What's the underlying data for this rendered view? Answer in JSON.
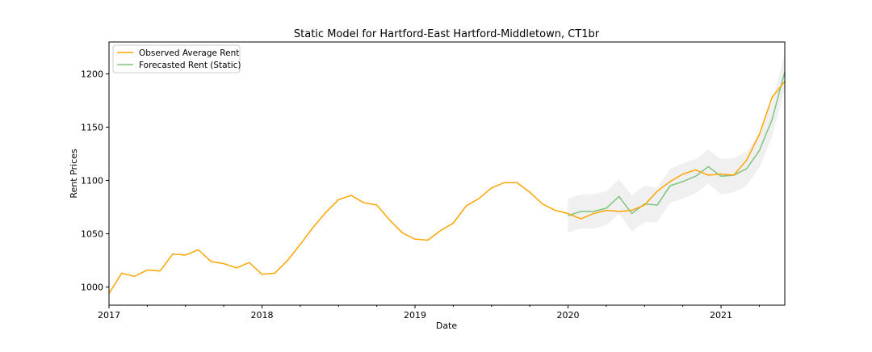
{
  "chart_data": {
    "type": "line",
    "title": "Static Model for Hartford-East Hartford-Middletown, CT1br",
    "xlabel": "Date",
    "ylabel": "Rent Prices",
    "xlim": [
      "2017-01",
      "2021-06"
    ],
    "ylim": [
      983,
      1230
    ],
    "x_tick_labels": [
      "2017",
      "2018",
      "2019",
      "2020",
      "2021"
    ],
    "y_ticks": [
      1000,
      1050,
      1100,
      1150,
      1200
    ],
    "grid": false,
    "legend_position": "upper-left",
    "colors": {
      "observed": "#FFA500",
      "forecast": "#7fc47f",
      "confidence_band": "#e6e6e6"
    },
    "series": [
      {
        "name": "Observed Average Rent",
        "x": [
          "2017-01",
          "2017-02",
          "2017-03",
          "2017-04",
          "2017-05",
          "2017-06",
          "2017-07",
          "2017-08",
          "2017-09",
          "2017-10",
          "2017-11",
          "2017-12",
          "2018-01",
          "2018-02",
          "2018-03",
          "2018-04",
          "2018-05",
          "2018-06",
          "2018-07",
          "2018-08",
          "2018-09",
          "2018-10",
          "2018-11",
          "2018-12",
          "2019-01",
          "2019-02",
          "2019-03",
          "2019-04",
          "2019-05",
          "2019-06",
          "2019-07",
          "2019-08",
          "2019-09",
          "2019-10",
          "2019-11",
          "2019-12",
          "2020-01",
          "2020-02",
          "2020-03",
          "2020-04",
          "2020-05",
          "2020-06",
          "2020-07",
          "2020-08",
          "2020-09",
          "2020-10",
          "2020-11",
          "2020-12",
          "2021-01",
          "2021-02",
          "2021-03",
          "2021-04",
          "2021-05",
          "2021-06"
        ],
        "values": [
          994,
          1013,
          1010,
          1016,
          1015,
          1031,
          1030,
          1035,
          1024,
          1022,
          1018,
          1023,
          1012,
          1013,
          1025,
          1040,
          1056,
          1070,
          1082,
          1086,
          1079,
          1077,
          1063,
          1051,
          1045,
          1044,
          1053,
          1060,
          1076,
          1083,
          1093,
          1098,
          1098,
          1089,
          1078,
          1072,
          1069,
          1064,
          1069,
          1072,
          1071,
          1072,
          1077,
          1090,
          1099,
          1106,
          1110,
          1105,
          1106,
          1105,
          1119,
          1143,
          1178,
          1193
        ]
      },
      {
        "name": "Forecasted Rent (Static)",
        "x": [
          "2020-01",
          "2020-02",
          "2020-03",
          "2020-04",
          "2020-05",
          "2020-06",
          "2020-07",
          "2020-08",
          "2020-09",
          "2020-10",
          "2020-11",
          "2020-12",
          "2021-01",
          "2021-02",
          "2021-03",
          "2021-04",
          "2021-05",
          "2021-06"
        ],
        "values": [
          1067,
          1071,
          1071,
          1074,
          1085,
          1069,
          1078,
          1077,
          1095,
          1099,
          1104,
          1113,
          1104,
          1105,
          1111,
          1128,
          1157,
          1202
        ],
        "ci_lower": [
          1051,
          1055,
          1055,
          1058,
          1069,
          1052,
          1061,
          1061,
          1079,
          1083,
          1088,
          1097,
          1087,
          1089,
          1095,
          1112,
          1141,
          1186
        ],
        "ci_upper": [
          1083,
          1087,
          1087,
          1090,
          1101,
          1086,
          1095,
          1093,
          1111,
          1116,
          1120,
          1129,
          1120,
          1121,
          1127,
          1145,
          1174,
          1219
        ]
      }
    ]
  }
}
